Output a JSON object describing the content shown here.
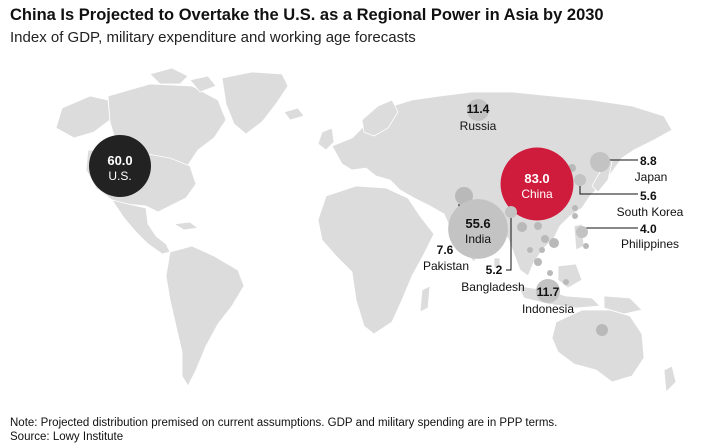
{
  "header": {
    "title": "China Is Projected to Overtake the U.S. as a Regional Power in Asia by 2030",
    "subtitle": "Index of GDP, military expenditure and working age forecasts"
  },
  "footer": {
    "note": "Note: Projected distribution premised on current assumptions. GDP and military spending are in PPP terms.",
    "source": "Source: Lowy Institute"
  },
  "colors": {
    "land": "#dcdcdc",
    "china": "#d01c3c",
    "us": "#222222",
    "bubble": "#c3c3c3",
    "minor_bubble": "#b9b9b9"
  },
  "chart_data": {
    "type": "bubble-map",
    "title": "China Is Projected to Overtake the U.S. as a Regional Power in Asia by 2030",
    "subtitle": "Index of GDP, military expenditure and working age forecasts",
    "series": [
      {
        "country": "China",
        "label": "China",
        "value": 83.0,
        "value_text": "83.0",
        "highlight": "red"
      },
      {
        "country": "U.S.",
        "label": "U.S.",
        "value": 60.0,
        "value_text": "60.0",
        "highlight": "dark"
      },
      {
        "country": "India",
        "label": "India",
        "value": 55.6,
        "value_text": "55.6"
      },
      {
        "country": "Indonesia",
        "label": "Indonesia",
        "value": 11.7,
        "value_text": "11.7"
      },
      {
        "country": "Russia",
        "label": "Russia",
        "value": 11.4,
        "value_text": "11.4"
      },
      {
        "country": "Japan",
        "label": "Japan",
        "value": 8.8,
        "value_text": "8.8"
      },
      {
        "country": "Pakistan",
        "label": "Pakistan",
        "value": 7.6,
        "value_text": "7.6"
      },
      {
        "country": "South Korea",
        "label": "South Korea",
        "value": 5.6,
        "value_text": "5.6"
      },
      {
        "country": "Bangladesh",
        "label": "Bangladesh",
        "value": 5.2,
        "value_text": "5.2"
      },
      {
        "country": "Philippines",
        "label": "Philippines",
        "value": 4.0,
        "value_text": "4.0"
      }
    ]
  }
}
